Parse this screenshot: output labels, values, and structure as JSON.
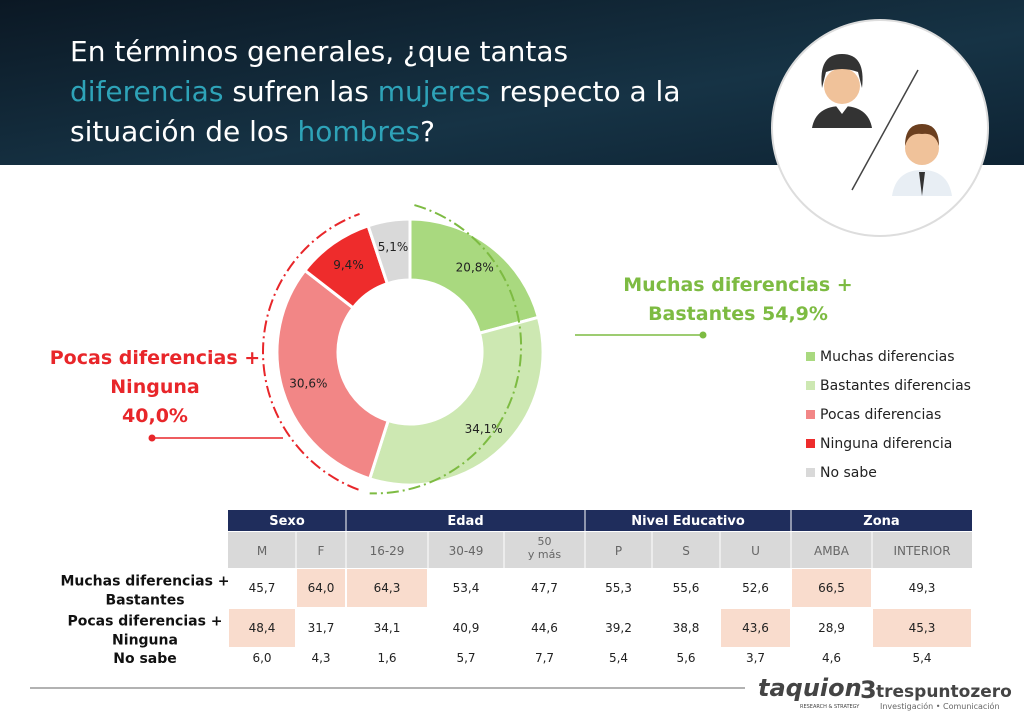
{
  "header": {
    "title": [
      [
        {
          "text": "En términos generales, ¿que tantas",
          "highlight": false
        }
      ],
      [
        {
          "text": "diferencias",
          "highlight": true
        },
        {
          "text": " sufren las ",
          "highlight": false
        },
        {
          "text": "mujeres",
          "highlight": true
        },
        {
          "text": " respecto a la",
          "highlight": false
        }
      ],
      [
        {
          "text": "situación de los ",
          "highlight": false
        },
        {
          "text": "hombres",
          "highlight": true
        },
        {
          "text": "?",
          "highlight": false
        }
      ]
    ]
  },
  "chart_data": {
    "type": "pie",
    "donut": true,
    "categories": [
      "Muchas diferencias",
      "Bastantes diferencias",
      "Pocas diferencias",
      "Ninguna diferencia",
      "No sabe"
    ],
    "values": [
      20.8,
      34.1,
      30.6,
      9.4,
      5.1
    ],
    "value_labels": [
      "20,8%",
      "34,1%",
      "30,6%",
      "9,4%",
      "5,1%"
    ],
    "colors": [
      "#a9d97f",
      "#cde8b2",
      "#f28686",
      "#ee2c2c",
      "#d9d9d9"
    ],
    "legend": "right"
  },
  "annotations": [
    {
      "lines": [
        "Muchas diferencias +",
        "Bastantes 54,9%"
      ],
      "color": "#7dbb42"
    },
    {
      "lines": [
        "Pocas diferencias +",
        "Ninguna",
        "40,0%"
      ],
      "color": "#e8262a"
    }
  ],
  "table": {
    "groups": [
      "Sexo",
      "Edad",
      "Nivel Educativo",
      "Zona"
    ],
    "columns": [
      "M",
      "F",
      "16-29",
      "30-49",
      "50\ny más",
      "P",
      "S",
      "U",
      "AMBA",
      "INTERIOR"
    ],
    "rows": [
      {
        "label": [
          "Muchas diferencias +",
          "Bastantes"
        ],
        "cells": [
          "45,7",
          "64,0",
          "64,3",
          "53,4",
          "47,7",
          "55,3",
          "55,6",
          "52,6",
          "66,5",
          "49,3"
        ],
        "highlight": [
          1,
          2,
          8
        ]
      },
      {
        "label": [
          "Pocas diferencias +",
          "Ninguna"
        ],
        "cells": [
          "48,4",
          "31,7",
          "34,1",
          "40,9",
          "44,6",
          "39,2",
          "38,8",
          "43,6",
          "28,9",
          "45,3"
        ],
        "highlight": [
          0,
          7,
          9
        ]
      },
      {
        "label": [
          "No sabe"
        ],
        "cells": [
          "6,0",
          "4,3",
          "1,6",
          "5,7",
          "7,7",
          "5,4",
          "5,6",
          "3,7",
          "4,6",
          "5,4"
        ],
        "highlight": []
      }
    ]
  },
  "footer": {
    "logos": [
      "taquion",
      "trespuntozero"
    ],
    "taglines": [
      "RESEARCH & STRATEGY",
      "Investigación • Comunicación"
    ]
  }
}
